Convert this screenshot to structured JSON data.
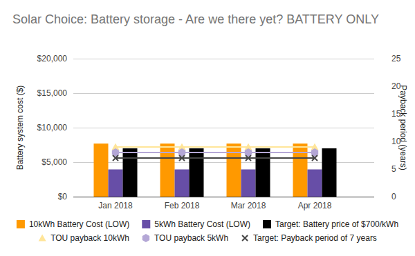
{
  "chart_data": {
    "type": "bar",
    "title": "Solar Choice: Battery storage - Are we there yet? BATTERY ONLY",
    "y_label": "Battery system cost ($)",
    "y2_label": "Payback period (years)",
    "categories": [
      "Jan 2018",
      "Feb 2018",
      "Mar 2018",
      "Apr 2018"
    ],
    "series": [
      {
        "name": "10kWh Battery Cost (LOW)",
        "type": "bar",
        "color": "#ff9900",
        "values": [
          7700,
          7700,
          7700,
          7700
        ]
      },
      {
        "name": "5kWh Battery Cost (LOW)",
        "type": "bar",
        "color": "#674ea7",
        "values": [
          3950,
          3950,
          3950,
          3950
        ]
      },
      {
        "name": "Target: Battery price of $700/kWh",
        "type": "bar",
        "color": "#000000",
        "values": [
          7000,
          7000,
          7000,
          7000
        ]
      },
      {
        "name": "TOU payback 10kWh",
        "type": "line",
        "axis": "y2",
        "marker": "triangle",
        "color": "#ffe599",
        "values": [
          9,
          9,
          9,
          9
        ]
      },
      {
        "name": "TOU payback 5kWh",
        "type": "line",
        "axis": "y2",
        "marker": "hexagon",
        "color": "#b4a7d6",
        "values": [
          8,
          8,
          8,
          8
        ]
      },
      {
        "name": "Target: Payback period of 7 years",
        "type": "line",
        "axis": "y2",
        "marker": "x",
        "color": "#444444",
        "values": [
          7,
          7,
          7,
          7
        ]
      }
    ],
    "ylim": [
      0,
      20000
    ],
    "yticks": [
      {
        "value": 0,
        "label": "$0"
      },
      {
        "value": 5000,
        "label": "$5,000"
      },
      {
        "value": 10000,
        "label": "$10,000"
      },
      {
        "value": 15000,
        "label": "$15,000"
      },
      {
        "value": 20000,
        "label": "$20,000"
      }
    ],
    "y2lim": [
      0,
      25
    ],
    "y2ticks": [
      0,
      5,
      10,
      15,
      20,
      25
    ],
    "grid": true,
    "legend": "bottom"
  }
}
